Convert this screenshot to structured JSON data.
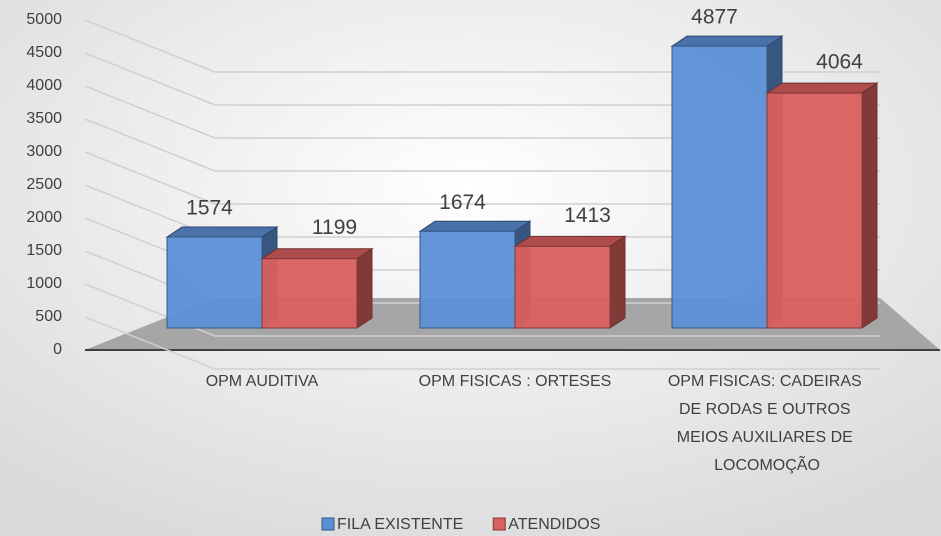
{
  "chart_data": {
    "type": "bar3d",
    "categories": [
      "OPM AUDITIVA",
      "OPM FISICAS : ORTESES",
      "OPM FISICAS: CADEIRAS DE RODAS E OUTROS MEIOS AUXILIARES DE LOCOMOÇÃO"
    ],
    "series": [
      {
        "name": "FILA EXISTENTE",
        "color": "#5b8fd6",
        "values": [
          1574,
          1674,
          4877
        ]
      },
      {
        "name": "ATENDIDOS",
        "color": "#d9605e",
        "values": [
          1199,
          1413,
          4064
        ]
      }
    ],
    "ylim": [
      0,
      5000
    ],
    "yticks": [
      0,
      500,
      1000,
      1500,
      2000,
      2500,
      3000,
      3500,
      4000,
      4500,
      5000
    ],
    "grid": true,
    "legend": "bottom"
  }
}
